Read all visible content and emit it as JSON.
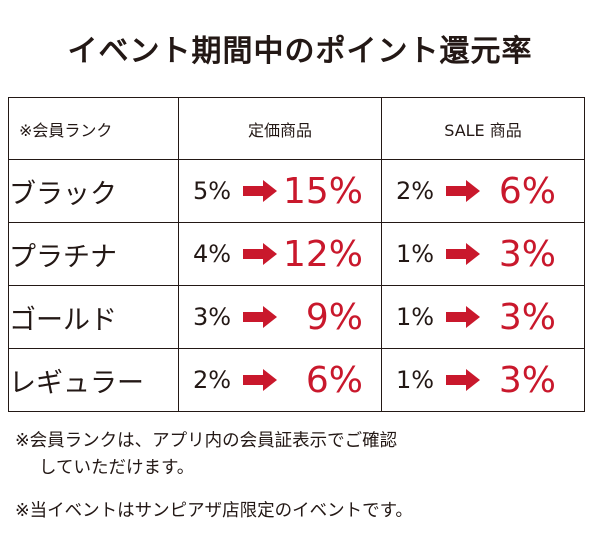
{
  "title": "イベント期間中のポイント還元率",
  "table": {
    "headers": {
      "rank": "※会員ランク",
      "regular": "定価商品",
      "sale": "SALE 商品"
    },
    "rows": [
      {
        "rank": "ブラック",
        "regular_from": "5%",
        "regular_to": "15%",
        "sale_from": "2%",
        "sale_to": "6%"
      },
      {
        "rank": "プラチナ",
        "regular_from": "4%",
        "regular_to": "12%",
        "sale_from": "1%",
        "sale_to": "3%"
      },
      {
        "rank": "ゴールド",
        "regular_from": "3%",
        "regular_to": "9%",
        "sale_from": "1%",
        "sale_to": "3%"
      },
      {
        "rank": "レギュラー",
        "regular_from": "2%",
        "regular_to": "6%",
        "sale_from": "1%",
        "sale_to": "3%"
      }
    ]
  },
  "notes": {
    "note1_line1": "※会員ランクは、アプリ内の会員証表示でご確認",
    "note1_line2": "していただけます。",
    "note2": "※当イベントはサンピアザ店限定のイベントです。"
  },
  "colors": {
    "accent_red": "#c9182c",
    "text": "#231815"
  },
  "icons": {
    "arrow": "right-arrow-icon"
  }
}
